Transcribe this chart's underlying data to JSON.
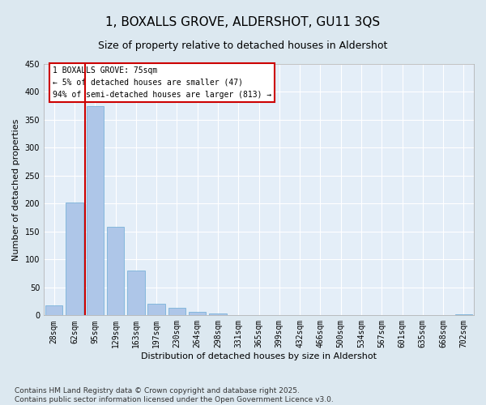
{
  "title": "1, BOXALLS GROVE, ALDERSHOT, GU11 3QS",
  "subtitle": "Size of property relative to detached houses in Aldershot",
  "xlabel": "Distribution of detached houses by size in Aldershot",
  "ylabel": "Number of detached properties",
  "categories": [
    "28sqm",
    "62sqm",
    "95sqm",
    "129sqm",
    "163sqm",
    "197sqm",
    "230sqm",
    "264sqm",
    "298sqm",
    "331sqm",
    "365sqm",
    "399sqm",
    "432sqm",
    "466sqm",
    "500sqm",
    "534sqm",
    "567sqm",
    "601sqm",
    "635sqm",
    "668sqm",
    "702sqm"
  ],
  "values": [
    18,
    202,
    375,
    158,
    80,
    21,
    14,
    6,
    3,
    0,
    1,
    0,
    0,
    0,
    0,
    0,
    0,
    0,
    0,
    0,
    2
  ],
  "bar_color": "#aec6e8",
  "bar_edge_color": "#6aaad4",
  "vline_color": "#cc0000",
  "annotation_text": "1 BOXALLS GROVE: 75sqm\n← 5% of detached houses are smaller (47)\n94% of semi-detached houses are larger (813) →",
  "annotation_box_color": "#cc0000",
  "ylim": [
    0,
    450
  ],
  "yticks": [
    0,
    50,
    100,
    150,
    200,
    250,
    300,
    350,
    400,
    450
  ],
  "footer": "Contains HM Land Registry data © Crown copyright and database right 2025.\nContains public sector information licensed under the Open Government Licence v3.0.",
  "background_color": "#dce8f0",
  "plot_background_color": "#e4eef8",
  "grid_color": "#ffffff",
  "title_fontsize": 11,
  "subtitle_fontsize": 9,
  "axis_label_fontsize": 8,
  "tick_fontsize": 7,
  "footer_fontsize": 6.5
}
